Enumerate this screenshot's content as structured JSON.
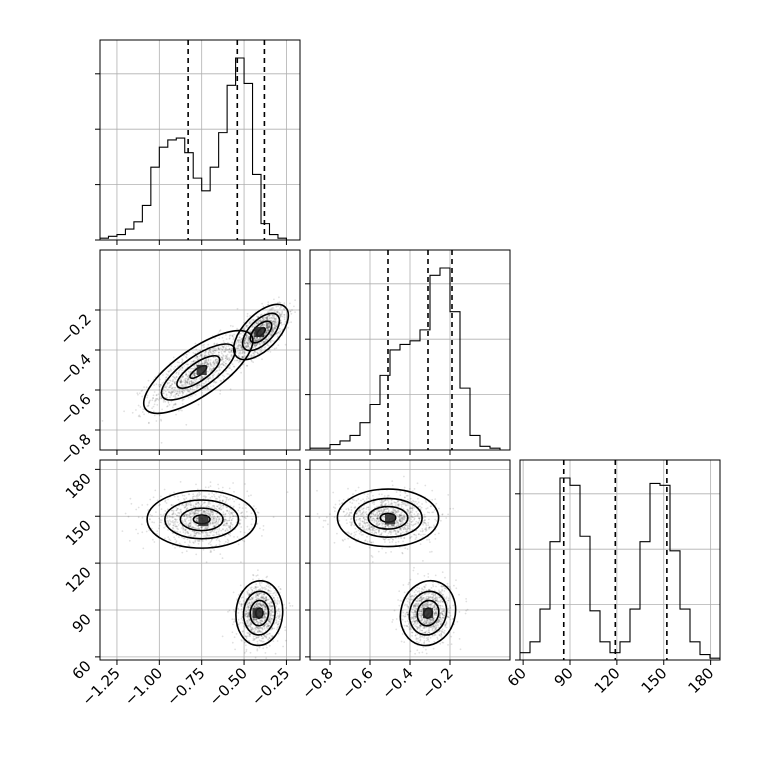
{
  "chart_data": {
    "type": "corner",
    "parameters": [
      {
        "range": [
          -1.35,
          -0.17
        ],
        "ticks": [
          -1.25,
          -1.0,
          -0.75,
          -0.5,
          -0.25
        ],
        "tick_labels": [
          "−1.25",
          "−1.00",
          "−0.75",
          "−0.50",
          "−0.25"
        ],
        "quantiles": [
          -0.83,
          -0.54,
          -0.38
        ]
      },
      {
        "range": [
          -0.9,
          0.1
        ],
        "ticks": [
          -0.8,
          -0.6,
          -0.4,
          -0.2
        ],
        "tick_labels": [
          "−0.8",
          "−0.6",
          "−0.4",
          "−0.2"
        ],
        "quantiles": [
          -0.51,
          -0.31,
          -0.19
        ]
      },
      {
        "range": [
          58,
          186
        ],
        "ticks": [
          60,
          90,
          120,
          150,
          180
        ],
        "tick_labels": [
          "60",
          "90",
          "120",
          "150",
          "180"
        ],
        "quantiles": [
          86,
          119,
          152
        ]
      }
    ],
    "histograms": [
      {
        "bins": [
          -1.35,
          -1.3,
          -1.25,
          -1.2,
          -1.15,
          -1.1,
          -1.05,
          -1.0,
          -0.95,
          -0.9,
          -0.85,
          -0.8,
          -0.75,
          -0.7,
          -0.65,
          -0.6,
          -0.55,
          -0.5,
          -0.45,
          -0.4,
          -0.35,
          -0.3,
          -0.25,
          -0.2
        ],
        "counts": [
          0.01,
          0.02,
          0.03,
          0.06,
          0.1,
          0.19,
          0.4,
          0.51,
          0.55,
          0.56,
          0.48,
          0.34,
          0.27,
          0.4,
          0.59,
          0.85,
          1.0,
          0.86,
          0.36,
          0.09,
          0.03,
          0.01,
          0.0
        ]
      },
      {
        "bins": [
          -0.9,
          -0.85,
          -0.8,
          -0.75,
          -0.7,
          -0.65,
          -0.6,
          -0.55,
          -0.5,
          -0.45,
          -0.4,
          -0.35,
          -0.3,
          -0.25,
          -0.2,
          -0.15,
          -0.1,
          -0.05,
          0.0,
          0.05,
          0.1
        ],
        "counts": [
          0.01,
          0.01,
          0.03,
          0.05,
          0.08,
          0.15,
          0.25,
          0.41,
          0.55,
          0.58,
          0.6,
          0.66,
          0.96,
          1.0,
          0.76,
          0.34,
          0.08,
          0.02,
          0.01,
          0.0
        ]
      },
      {
        "bins": [
          58,
          64.4,
          70.8,
          77.2,
          83.6,
          90,
          96.4,
          102.8,
          109.2,
          115.6,
          122,
          128.4,
          134.8,
          141.2,
          147.6,
          154,
          160.4,
          166.8,
          173.2,
          179.6,
          186
        ],
        "counts": [
          0.04,
          0.1,
          0.28,
          0.65,
          1.0,
          0.96,
          0.68,
          0.27,
          0.1,
          0.04,
          0.1,
          0.28,
          0.65,
          0.97,
          0.96,
          0.6,
          0.28,
          0.1,
          0.03,
          0.01
        ]
      }
    ],
    "scatter_blobs": [
      {
        "pair": [
          0,
          1
        ],
        "components": [
          {
            "mean": [
              -0.77,
              -0.51
            ],
            "sd": [
              0.14,
              0.09
            ],
            "rho": 0.75,
            "weight": 0.5
          },
          {
            "mean": [
              -0.4,
              -0.31
            ],
            "sd": [
              0.07,
              0.06
            ],
            "rho": 0.6,
            "weight": 0.5
          }
        ]
      },
      {
        "pair": [
          0,
          2
        ],
        "components": [
          {
            "mean": [
              -0.75,
              148
            ],
            "sd": [
              0.14,
              8
            ],
            "rho": 0.0,
            "weight": 0.5
          },
          {
            "mean": [
              -0.41,
              88
            ],
            "sd": [
              0.06,
              9
            ],
            "rho": 0.05,
            "weight": 0.5
          }
        ]
      },
      {
        "pair": [
          1,
          2
        ],
        "components": [
          {
            "mean": [
              -0.51,
              149
            ],
            "sd": [
              0.11,
              8
            ],
            "rho": 0.0,
            "weight": 0.5
          },
          {
            "mean": [
              -0.31,
              88
            ],
            "sd": [
              0.06,
              9
            ],
            "rho": 0.1,
            "weight": 0.5
          }
        ]
      }
    ],
    "density_hotspots": [
      {
        "pair": [
          0,
          1
        ],
        "point": [
          -0.41,
          -0.31
        ]
      },
      {
        "pair": [
          0,
          1
        ],
        "point": [
          -0.75,
          -0.5
        ]
      },
      {
        "pair": [
          0,
          2
        ],
        "point": [
          -0.42,
          88
        ]
      },
      {
        "pair": [
          0,
          2
        ],
        "point": [
          -0.74,
          147
        ]
      },
      {
        "pair": [
          1,
          2
        ],
        "point": [
          -0.31,
          88
        ]
      },
      {
        "pair": [
          1,
          2
        ],
        "point": [
          -0.5,
          148
        ]
      }
    ],
    "grid": true,
    "legend": "none"
  }
}
